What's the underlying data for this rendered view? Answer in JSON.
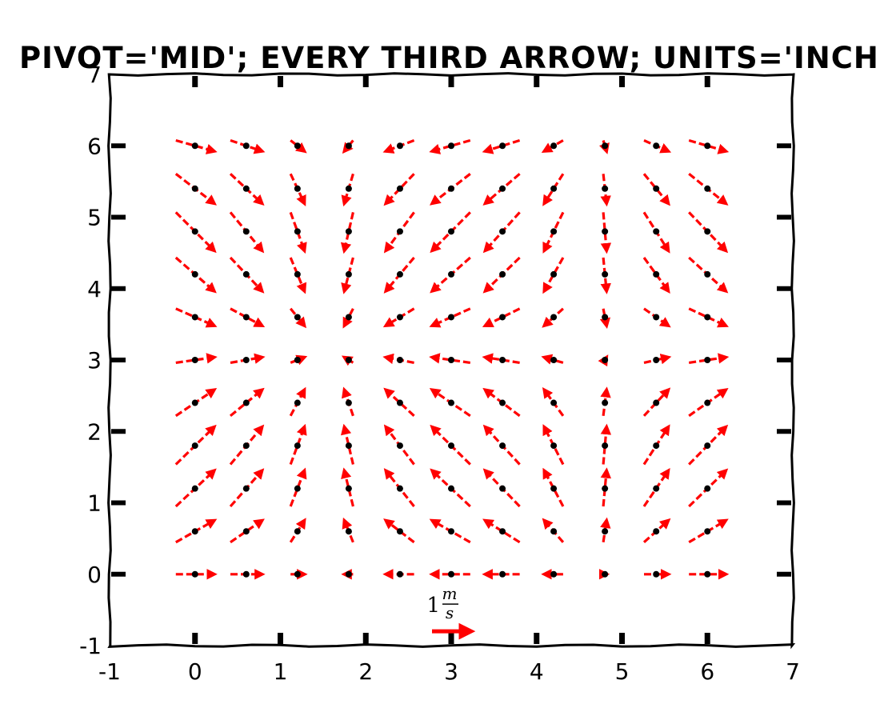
{
  "chart_data": {
    "type": "quiver",
    "title": "PIVOT='MID'; EVERY THIRD ARROW; UNITS='INCHES'",
    "xlabel": "",
    "ylabel": "",
    "xlim": [
      -1,
      7
    ],
    "ylim": [
      -1,
      7
    ],
    "x_ticks": [
      "-1",
      "0",
      "1",
      "2",
      "3",
      "4",
      "5",
      "6",
      "7"
    ],
    "y_ticks": [
      "-1",
      "0",
      "1",
      "2",
      "3",
      "4",
      "5",
      "6",
      "7"
    ],
    "grid": false,
    "pivot": "mid",
    "arrow_color": "#ff0000",
    "point_color": "#000000",
    "field": {
      "u": "cos(x)",
      "v": "sin(y)",
      "x": [
        0.0,
        0.6,
        1.2,
        1.8,
        2.4,
        3.0,
        3.6,
        4.2,
        4.8,
        5.4,
        6.0
      ],
      "y": [
        0.0,
        0.6,
        1.2,
        1.8,
        2.4,
        3.0,
        3.6,
        4.2,
        4.8,
        5.4,
        6.0
      ]
    },
    "key": {
      "value": 1,
      "label_number": "1",
      "label_num": "m",
      "label_den": "s",
      "x": 3.0,
      "y": -0.8
    }
  }
}
